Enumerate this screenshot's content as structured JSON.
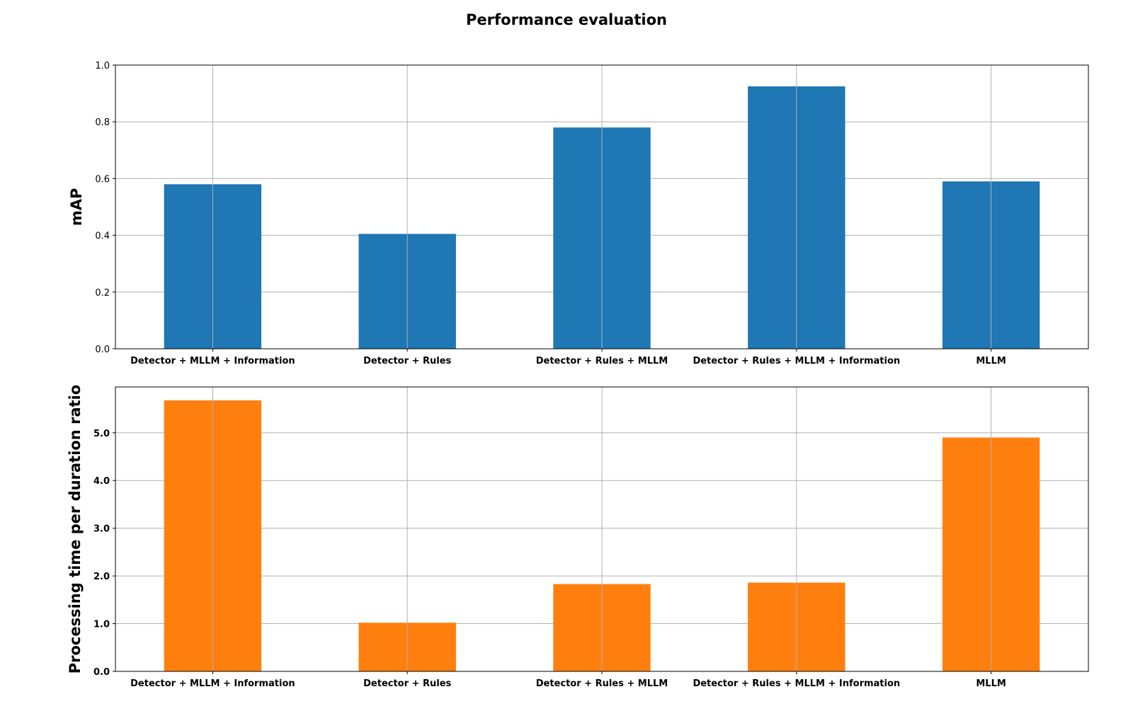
{
  "figure_title": "Performance evaluation",
  "chart_data": [
    {
      "type": "bar",
      "categories": [
        "Detector + MLLM + Information",
        "Detector + Rules",
        "Detector + Rules + MLLM",
        "Detector + Rules + MLLM + Information",
        "MLLM"
      ],
      "values": [
        0.58,
        0.405,
        0.78,
        0.925,
        0.59
      ],
      "ylabel": "mAP",
      "ylim": [
        0,
        1.0
      ],
      "yticks": [
        "0.0",
        "0.2",
        "0.4",
        "0.6",
        "0.8",
        "1.0"
      ],
      "ytick_values": [
        0,
        0.2,
        0.4,
        0.6,
        0.8,
        1.0
      ],
      "color": "#1f77b4",
      "grid": true
    },
    {
      "type": "bar",
      "categories": [
        "Detector + MLLM + Information",
        "Detector + Rules",
        "Detector + Rules + MLLM",
        "Detector + Rules + MLLM + Information",
        "MLLM"
      ],
      "values": [
        5.68,
        1.02,
        1.83,
        1.86,
        4.9
      ],
      "ylabel": "Processing time per duration ratio",
      "ylim": [
        0,
        5.96
      ],
      "yticks": [
        "0.0",
        "1.0",
        "2.0",
        "3.0",
        "4.0",
        "5.0"
      ],
      "ytick_values": [
        0,
        1,
        2,
        3,
        4,
        5
      ],
      "color": "#ff7f0e",
      "grid": true
    }
  ]
}
